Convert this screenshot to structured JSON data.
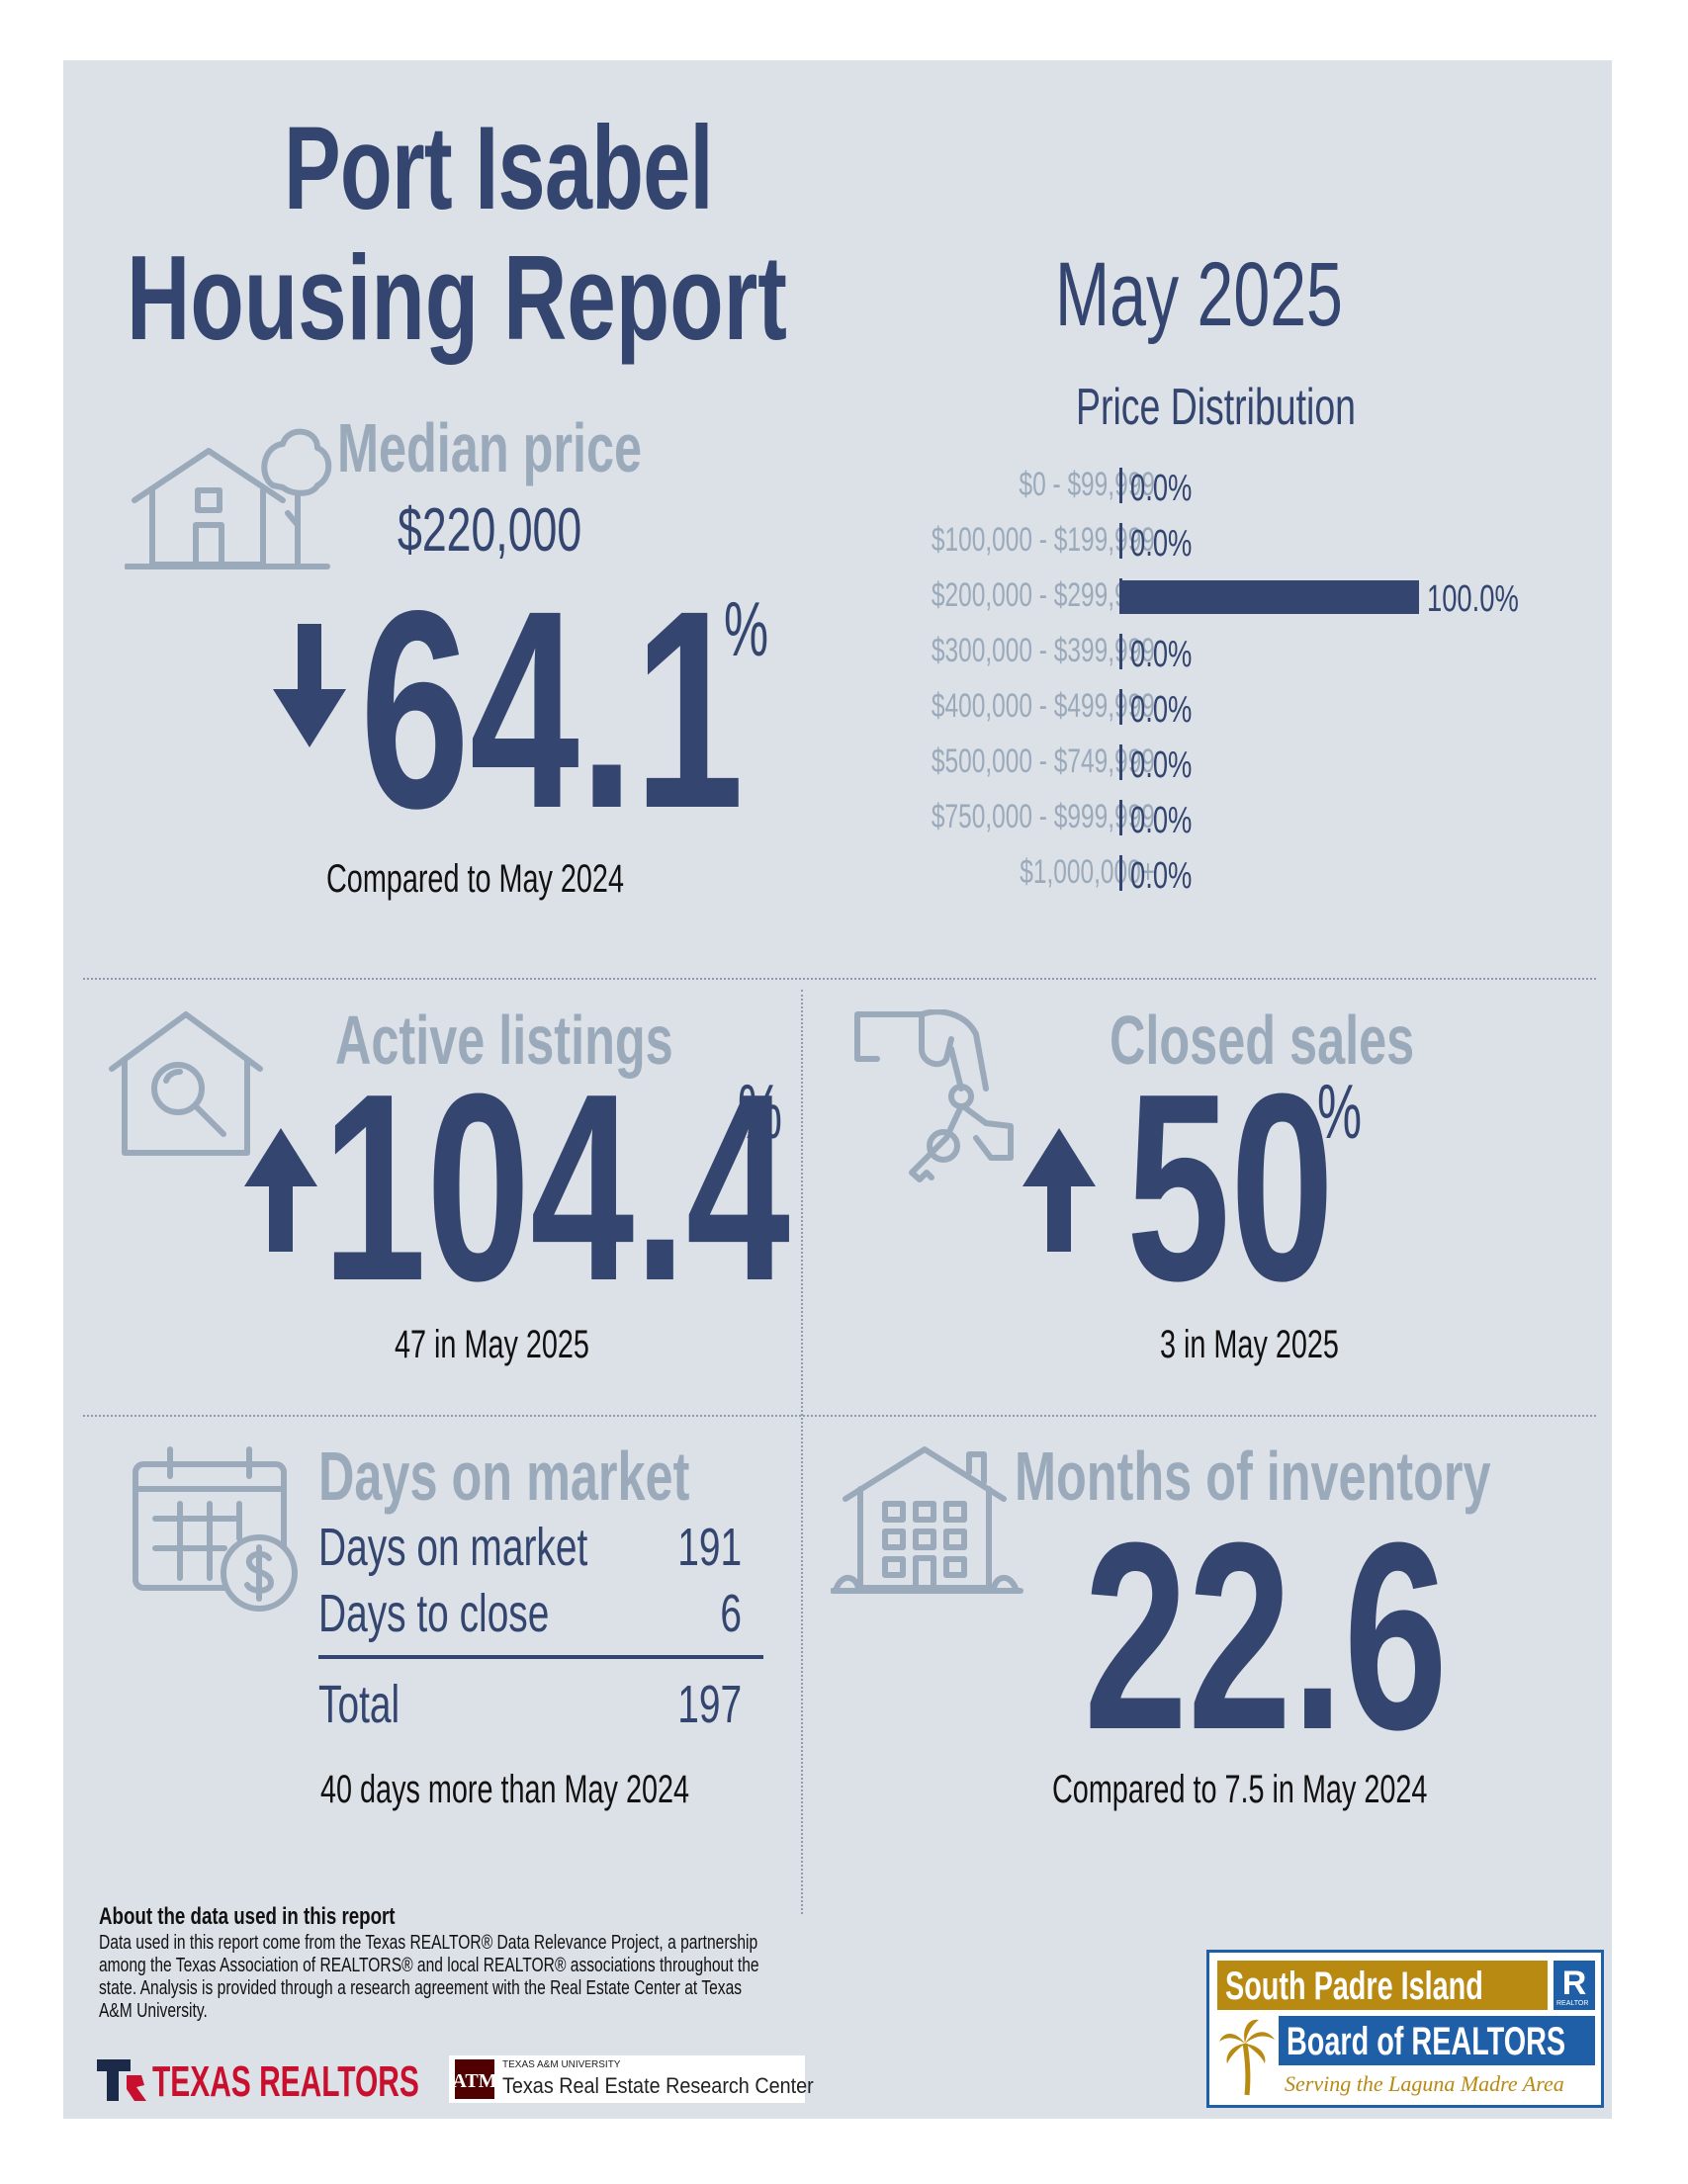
{
  "header": {
    "title_line1": "Port Isabel",
    "title_line2": "Housing Report",
    "month": "May 2025"
  },
  "median_price": {
    "label": "Median price",
    "value": "$220,000",
    "change": "64.1",
    "change_unit": "%",
    "direction": "down",
    "caption": "Compared to May 2024",
    "icon": "house-tree-icon"
  },
  "price_distribution": {
    "title": "Price Distribution"
  },
  "chart_data": {
    "type": "bar",
    "orientation": "horizontal",
    "title": "Price Distribution",
    "categories": [
      "$0 - $99,999",
      "$100,000 - $199,999",
      "$200,000 - $299,999",
      "$300,000 - $399,999",
      "$400,000 - $499,999",
      "$500,000 - $749,999",
      "$750,000 - $999,999",
      "$1,000,000+"
    ],
    "values": [
      0.0,
      0.0,
      100.0,
      0.0,
      0.0,
      0.0,
      0.0,
      0.0
    ],
    "value_labels": [
      "0.0%",
      "0.0%",
      "100.0%",
      "0.0%",
      "0.0%",
      "0.0%",
      "0.0%",
      "0.0%"
    ],
    "xlim": [
      0,
      100
    ],
    "bar_color": "#34466f",
    "grid": false
  },
  "active_listings": {
    "label": "Active listings",
    "change": "104.4",
    "change_unit": "%",
    "direction": "up",
    "caption": "47 in May 2025",
    "icon": "house-search-icon"
  },
  "closed_sales": {
    "label": "Closed sales",
    "change": "50",
    "change_unit": "%",
    "direction": "up",
    "caption": "3 in May 2025",
    "icon": "hand-keys-icon"
  },
  "days_on_market": {
    "label": "Days on market",
    "rows": [
      {
        "label": "Days on market",
        "value": "191"
      },
      {
        "label": "Days to close",
        "value": "6"
      }
    ],
    "total_label": "Total",
    "total_value": "197",
    "caption": "40 days more than May 2024",
    "icon": "calendar-dollar-icon"
  },
  "months_inventory": {
    "label": "Months of inventory",
    "value": "22.6",
    "caption": "Compared to 7.5 in May 2024",
    "icon": "apartment-building-icon"
  },
  "about": {
    "title": "About the data used in this report",
    "body": "Data used in this report come from the Texas REALTOR® Data Relevance Project, a partnership among the Texas Association of REALTORS® and local REALTOR® associations throughout the state. Analysis is provided through a research agreement with the Real Estate Center at Texas A&M University."
  },
  "logos": {
    "texas_realtors": "TEXAS REALTORS",
    "tamu_small": "TEXAS A&M UNIVERSITY",
    "tamu_name": "Texas Real Estate Research Center",
    "spi_line1": "South Padre Island",
    "spi_line2": "Board of REALTORS",
    "spi_tagline": "Serving the Laguna Madre Area",
    "realtor_mark": "REALTOR"
  },
  "colors": {
    "navy": "#34466f",
    "muted": "#9aaabb",
    "panel": "#dce0e7",
    "texas_red": "#c8102e",
    "spi_gold": "#b98a12",
    "spi_blue": "#1f5fa8"
  }
}
